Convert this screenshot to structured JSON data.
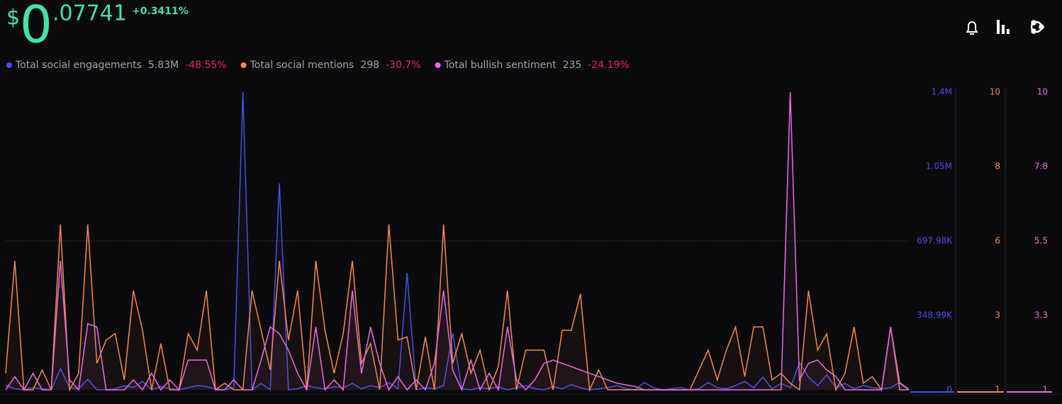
{
  "header": {
    "currency": "$",
    "price_int": "0",
    "price_dec": ".07741",
    "change": "+0.3411%"
  },
  "chart_data": {
    "type": "line",
    "series": [
      {
        "name": "Total social engagements",
        "total": "5.83M",
        "change": "-48.55%",
        "color": "#4b4fe0",
        "axis": "y",
        "values": [
          20000,
          5000,
          0,
          10000,
          5000,
          0,
          100000,
          10000,
          5000,
          50000,
          0,
          0,
          5000,
          20000,
          10000,
          40000,
          0,
          15000,
          5000,
          0,
          10000,
          20000,
          15000,
          5000,
          0,
          10000,
          1396000,
          0,
          30000,
          0,
          968000,
          0,
          5000,
          20000,
          10000,
          5000,
          15000,
          10000,
          30000,
          5000,
          20000,
          10000,
          35000,
          5000,
          548000,
          0,
          10000,
          5000,
          20000,
          267000,
          5000,
          0,
          10000,
          5000,
          15000,
          0,
          10000,
          20000,
          5000,
          0,
          15000,
          5000,
          25000,
          10000,
          0,
          5000,
          10000,
          20000,
          5000,
          0,
          35000,
          10000,
          0,
          5000,
          10000,
          0,
          5000,
          35000,
          10000,
          5000,
          20000,
          40000,
          10000,
          60000,
          5000,
          30000,
          10000,
          127000,
          60000,
          20000,
          70000,
          10000,
          30000,
          5000,
          20000,
          10000,
          5000,
          10000,
          35000,
          5000
        ]
      },
      {
        "name": "Total social mentions",
        "total": "298",
        "change": "-30.7%",
        "color": "#f28a4e",
        "axis": "y2",
        "values": [
          1.5,
          4.9,
          1,
          1,
          1.6,
          1,
          6.0,
          1,
          1.5,
          6.0,
          1.8,
          2.5,
          2.7,
          1.3,
          4.0,
          2.8,
          1,
          2.4,
          1,
          1,
          2.7,
          2.2,
          4.0,
          1,
          1.2,
          1,
          1,
          4.0,
          2.8,
          1.6,
          4.9,
          2.5,
          4.0,
          1,
          4.9,
          2.8,
          1.5,
          2.7,
          4.9,
          1.8,
          2.4,
          1,
          6.0,
          2.5,
          2.6,
          1,
          2.6,
          1,
          6.0,
          1.8,
          2.7,
          1.5,
          2.2,
          1,
          1.7,
          4.0,
          1,
          2.2,
          2.2,
          2.2,
          1,
          2.8,
          2.8,
          3.9,
          1,
          1.6,
          1,
          1,
          1,
          1,
          1,
          1,
          1,
          1,
          1,
          1,
          1.6,
          2.2,
          1.3,
          2.2,
          2.9,
          1.4,
          2.9,
          2.9,
          1.3,
          1.5,
          1.2,
          1,
          4.0,
          2.2,
          2.7,
          1,
          1.5,
          2.9,
          1.2,
          1.4,
          1,
          2.9,
          1.2,
          1
        ]
      },
      {
        "name": "Total bullish sentiment",
        "total": "235",
        "change": "-24.19%",
        "color": "#e66ee0",
        "axis": "y3",
        "values": [
          1,
          1.4,
          1,
          1.5,
          1,
          1,
          4.9,
          1.3,
          1,
          3.0,
          2.9,
          1,
          1,
          1,
          1.3,
          1,
          1.5,
          1,
          1.3,
          1,
          1.9,
          1.9,
          1.9,
          1,
          1,
          1.3,
          1,
          1,
          1.9,
          2.9,
          2.7,
          2.2,
          1.5,
          1,
          2.9,
          1,
          1.3,
          1,
          4.0,
          1.5,
          2.9,
          1.8,
          1,
          1.4,
          1,
          1.3,
          1,
          1.8,
          4.0,
          1.6,
          1,
          1.9,
          1,
          1.5,
          1,
          2.9,
          1.3,
          1,
          1.3,
          1.8,
          1.9,
          1.8,
          1.7,
          1.6,
          1.5,
          1.4,
          1.3,
          1.2,
          1.15,
          1.1,
          1,
          1,
          1,
          1,
          1,
          1,
          1,
          1,
          1,
          1,
          1,
          1,
          1,
          1,
          1,
          1,
          10,
          1.3,
          1.8,
          1.9,
          1.6,
          1.4,
          1,
          1,
          1,
          1,
          1,
          2.9,
          1,
          1
        ]
      }
    ],
    "ylim": [
      0,
      1395960
    ],
    "yticks": [
      0,
      {
        "value": 348990,
        "label": "348.99K"
      },
      {
        "value": 697980,
        "label": "697.98K"
      },
      {
        "value": 1046970,
        "label": "1.05M"
      },
      {
        "value": 1395960,
        "label": "1.4M"
      }
    ],
    "y2lim": [
      1,
      10
    ],
    "y2ticks": [
      1,
      {
        "value": 3.25,
        "label": "3"
      },
      {
        "value": 5.5,
        "label": "6"
      },
      {
        "value": 7.75,
        "label": "8"
      },
      10
    ],
    "y3lim": [
      1,
      10
    ],
    "y3ticks": [
      1,
      {
        "value": 3.25,
        "label": "3.3"
      },
      5.5,
      {
        "value": 7.75,
        "label": "7.8"
      },
      10
    ]
  }
}
